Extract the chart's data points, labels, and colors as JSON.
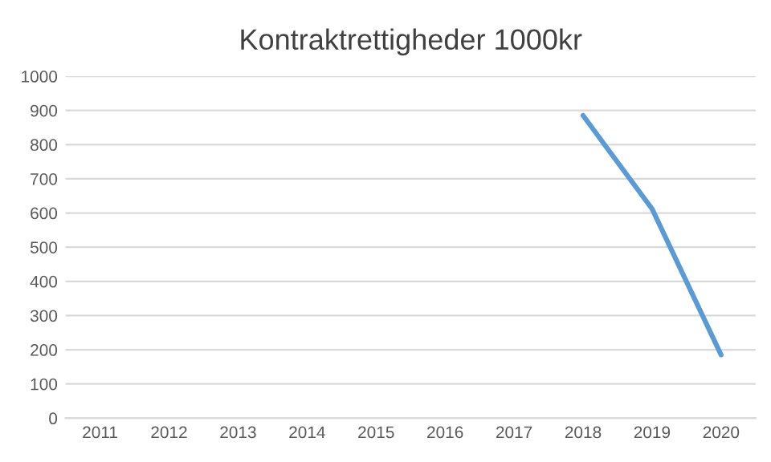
{
  "chart_data": {
    "type": "line",
    "title": "Kontraktrettigheder 1000kr",
    "categories": [
      "2011",
      "2012",
      "2013",
      "2014",
      "2015",
      "2016",
      "2017",
      "2018",
      "2019",
      "2020"
    ],
    "series": [
      {
        "color": "#5b9bd5",
        "values": [
          null,
          null,
          null,
          null,
          null,
          null,
          null,
          885,
          612,
          185
        ]
      }
    ],
    "ylim": [
      0,
      1000
    ],
    "yticks": [
      0,
      100,
      200,
      300,
      400,
      500,
      600,
      700,
      800,
      900,
      1000
    ],
    "grid": "y",
    "legend": false,
    "marker": "none",
    "line_style": "solid"
  }
}
